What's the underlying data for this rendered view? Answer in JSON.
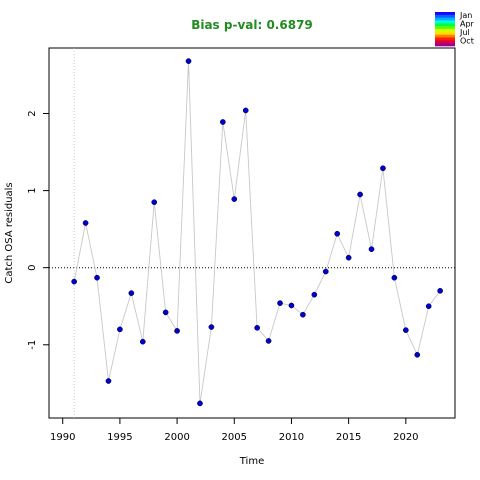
{
  "chart_data": {
    "type": "scatter",
    "title": "Bias p-val: 0.6879",
    "title_color": "#228B22",
    "xlabel": "Time",
    "ylabel": "Catch OSA residuals",
    "xlim": [
      1988.8,
      2024.3
    ],
    "ylim": [
      -1.95,
      2.85
    ],
    "x_ticks": [
      1990,
      1995,
      2000,
      2005,
      2010,
      2015,
      2020
    ],
    "y_ticks": [
      -1,
      0,
      1,
      2
    ],
    "reference_line_y": 0,
    "reference_line_x": 1991,
    "point_color": "#0000CD",
    "line_color": "#C8C8C8",
    "series": [
      {
        "x": [
          1991,
          1992,
          1993,
          1994,
          1995,
          1996,
          1997,
          1998,
          1999,
          2000,
          2001,
          2002,
          2003,
          2004,
          2005,
          2006,
          2007,
          2008,
          2009,
          2010,
          2011,
          2012,
          2013,
          2014,
          2015,
          2016,
          2017,
          2018,
          2019,
          2020,
          2021,
          2022,
          2023
        ],
        "values": [
          -0.18,
          0.58,
          -0.13,
          -1.47,
          -0.8,
          -0.33,
          -0.96,
          0.85,
          -0.58,
          -0.82,
          2.68,
          -1.76,
          -0.77,
          1.89,
          0.89,
          2.04,
          -0.78,
          -0.95,
          -0.46,
          -0.49,
          -0.61,
          -0.35,
          -0.05,
          0.44,
          0.13,
          0.95,
          0.24,
          1.29,
          -0.13,
          -0.81,
          -1.13,
          -0.5,
          -0.3
        ]
      }
    ],
    "legend": {
      "position": "top-right",
      "entries": [
        "Jan",
        "Apr",
        "Jul",
        "Oct"
      ],
      "colors": [
        "#2200FF",
        "#0066FF",
        "#00B0FF",
        "#00FFE0",
        "#00FF40",
        "#60FF00",
        "#D0FF00",
        "#FFE000",
        "#FF8000",
        "#FF2000",
        "#E00040",
        "#A00090"
      ]
    }
  }
}
